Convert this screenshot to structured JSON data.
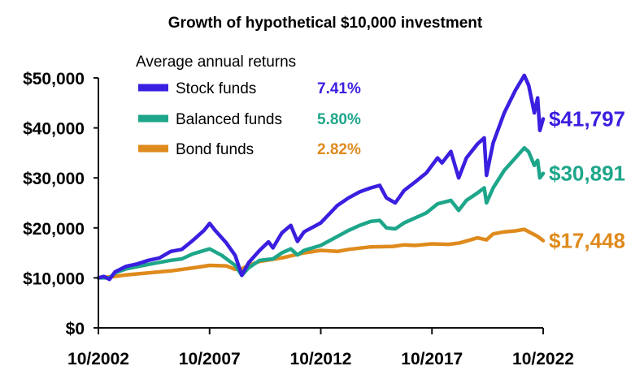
{
  "chart_data": {
    "type": "line",
    "title": "Growth of hypothetical $10,000 investment",
    "legend_title": "Average annual returns",
    "legend_placement": "top-left",
    "grid": false,
    "xlim": [
      2002.75,
      2022.75
    ],
    "ylim": [
      0,
      50000
    ],
    "x_ticks": [
      "10/2002",
      "10/2007",
      "10/2012",
      "10/2017",
      "10/2022"
    ],
    "x_tick_values": [
      2002.75,
      2007.75,
      2012.75,
      2017.75,
      2022.75
    ],
    "y_ticks": [
      "$0",
      "$10,000",
      "$20,000",
      "$30,000",
      "$40,000",
      "$50,000"
    ],
    "y_tick_values": [
      0,
      10000,
      20000,
      30000,
      40000,
      50000
    ],
    "series": [
      {
        "name": "Stock funds",
        "return_label": "7.41%",
        "end_label": "$41,797",
        "color": "#3a1fe0",
        "points": [
          [
            2002.75,
            10000
          ],
          [
            2003.0,
            10300
          ],
          [
            2003.25,
            9700
          ],
          [
            2003.5,
            11200
          ],
          [
            2004.0,
            12300
          ],
          [
            2004.5,
            12800
          ],
          [
            2005.0,
            13500
          ],
          [
            2005.5,
            14000
          ],
          [
            2006.0,
            15300
          ],
          [
            2006.5,
            15700
          ],
          [
            2007.0,
            17500
          ],
          [
            2007.5,
            19500
          ],
          [
            2007.75,
            20900
          ],
          [
            2008.0,
            19500
          ],
          [
            2008.5,
            17000
          ],
          [
            2008.9,
            14500
          ],
          [
            2009.2,
            10500
          ],
          [
            2009.5,
            13000
          ],
          [
            2010.0,
            15500
          ],
          [
            2010.4,
            17200
          ],
          [
            2010.6,
            16000
          ],
          [
            2011.0,
            19000
          ],
          [
            2011.4,
            20500
          ],
          [
            2011.7,
            17300
          ],
          [
            2012.0,
            19200
          ],
          [
            2012.75,
            21000
          ],
          [
            2013.5,
            24500
          ],
          [
            2014.0,
            26000
          ],
          [
            2014.5,
            27200
          ],
          [
            2015.0,
            28000
          ],
          [
            2015.4,
            28500
          ],
          [
            2015.7,
            26000
          ],
          [
            2016.1,
            25000
          ],
          [
            2016.5,
            27500
          ],
          [
            2017.0,
            29200
          ],
          [
            2017.5,
            31000
          ],
          [
            2018.0,
            34000
          ],
          [
            2018.2,
            33000
          ],
          [
            2018.6,
            35300
          ],
          [
            2018.95,
            30000
          ],
          [
            2019.3,
            34000
          ],
          [
            2019.8,
            36800
          ],
          [
            2020.1,
            38000
          ],
          [
            2020.2,
            30500
          ],
          [
            2020.5,
            37000
          ],
          [
            2021.0,
            43000
          ],
          [
            2021.5,
            47500
          ],
          [
            2021.9,
            50500
          ],
          [
            2022.1,
            48500
          ],
          [
            2022.35,
            43000
          ],
          [
            2022.5,
            46000
          ],
          [
            2022.6,
            39500
          ],
          [
            2022.75,
            41797
          ]
        ]
      },
      {
        "name": "Balanced funds",
        "return_label": "5.80%",
        "end_label": "$30,891",
        "color": "#1ea68a",
        "points": [
          [
            2002.75,
            10000
          ],
          [
            2003.25,
            10000
          ],
          [
            2003.5,
            11000
          ],
          [
            2004.0,
            11800
          ],
          [
            2005.0,
            12700
          ],
          [
            2006.0,
            13500
          ],
          [
            2006.5,
            13800
          ],
          [
            2007.0,
            14800
          ],
          [
            2007.75,
            15800
          ],
          [
            2008.3,
            14500
          ],
          [
            2008.9,
            12500
          ],
          [
            2009.2,
            10500
          ],
          [
            2009.5,
            12000
          ],
          [
            2010.0,
            13500
          ],
          [
            2010.6,
            13800
          ],
          [
            2011.0,
            15000
          ],
          [
            2011.4,
            15800
          ],
          [
            2011.7,
            14600
          ],
          [
            2012.0,
            15500
          ],
          [
            2012.75,
            16500
          ],
          [
            2013.5,
            18300
          ],
          [
            2014.0,
            19500
          ],
          [
            2014.5,
            20500
          ],
          [
            2015.0,
            21300
          ],
          [
            2015.4,
            21500
          ],
          [
            2015.7,
            20000
          ],
          [
            2016.1,
            19800
          ],
          [
            2016.5,
            21000
          ],
          [
            2017.0,
            22000
          ],
          [
            2017.5,
            23000
          ],
          [
            2018.0,
            24800
          ],
          [
            2018.6,
            25500
          ],
          [
            2018.95,
            23500
          ],
          [
            2019.3,
            25500
          ],
          [
            2019.8,
            27000
          ],
          [
            2020.1,
            28000
          ],
          [
            2020.2,
            25000
          ],
          [
            2020.5,
            28000
          ],
          [
            2021.0,
            31500
          ],
          [
            2021.5,
            34000
          ],
          [
            2021.9,
            36000
          ],
          [
            2022.1,
            35200
          ],
          [
            2022.35,
            32500
          ],
          [
            2022.5,
            33500
          ],
          [
            2022.6,
            30000
          ],
          [
            2022.75,
            30891
          ]
        ]
      },
      {
        "name": "Bond funds",
        "return_label": "2.82%",
        "end_label": "$17,448",
        "color": "#df8a1c",
        "points": [
          [
            2002.75,
            10000
          ],
          [
            2003.25,
            10200
          ],
          [
            2003.5,
            10300
          ],
          [
            2004.0,
            10600
          ],
          [
            2005.0,
            11000
          ],
          [
            2006.0,
            11400
          ],
          [
            2007.0,
            12000
          ],
          [
            2007.75,
            12500
          ],
          [
            2008.5,
            12400
          ],
          [
            2008.9,
            11700
          ],
          [
            2009.2,
            11800
          ],
          [
            2009.5,
            12500
          ],
          [
            2010.0,
            13300
          ],
          [
            2011.0,
            14000
          ],
          [
            2012.0,
            15000
          ],
          [
            2012.75,
            15500
          ],
          [
            2013.5,
            15300
          ],
          [
            2014.0,
            15700
          ],
          [
            2015.0,
            16200
          ],
          [
            2016.0,
            16300
          ],
          [
            2016.5,
            16600
          ],
          [
            2017.0,
            16500
          ],
          [
            2017.75,
            16800
          ],
          [
            2018.5,
            16700
          ],
          [
            2019.0,
            17000
          ],
          [
            2019.8,
            18000
          ],
          [
            2020.2,
            17600
          ],
          [
            2020.5,
            18800
          ],
          [
            2021.0,
            19200
          ],
          [
            2021.5,
            19400
          ],
          [
            2021.9,
            19700
          ],
          [
            2022.2,
            19000
          ],
          [
            2022.5,
            18300
          ],
          [
            2022.75,
            17448
          ]
        ]
      }
    ]
  }
}
